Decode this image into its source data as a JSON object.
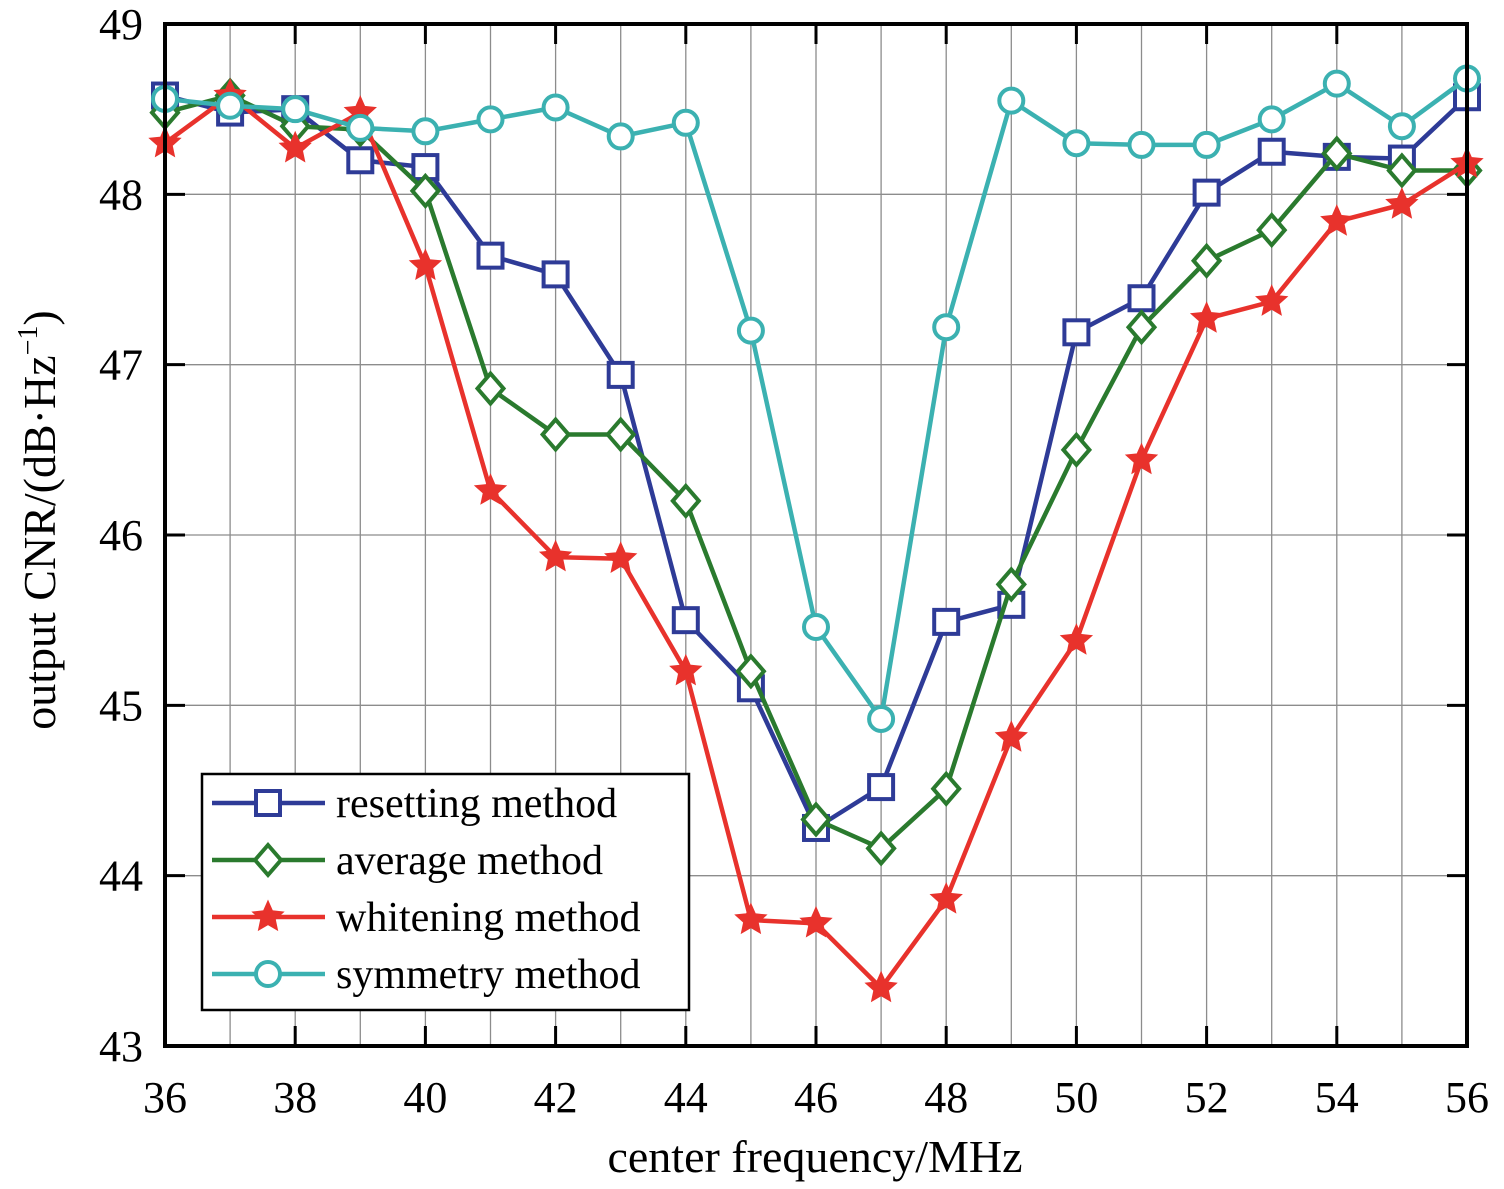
{
  "chart_data": {
    "type": "line",
    "title": "",
    "xlabel": "center frequency/MHz",
    "ylabel": "output CNR/(dB·Hz",
    "ylabel_superscript": "−1",
    "ylabel_close": ")",
    "xlim": [
      36,
      56
    ],
    "ylim": [
      43,
      49
    ],
    "xticks": [
      36,
      38,
      40,
      42,
      44,
      46,
      48,
      50,
      52,
      54,
      56
    ],
    "yticks": [
      43,
      44,
      45,
      46,
      47,
      48,
      49
    ],
    "grid": true,
    "legend_position": "bottom-left",
    "x": [
      36,
      37,
      38,
      39,
      40,
      41,
      42,
      43,
      44,
      45,
      46,
      47,
      48,
      49,
      50,
      51,
      52,
      53,
      54,
      55,
      56
    ],
    "series": [
      {
        "name": "resetting method",
        "color": "#2e3b97",
        "marker": "square",
        "values": [
          48.58,
          48.48,
          48.5,
          48.2,
          48.16,
          47.64,
          47.53,
          46.94,
          45.5,
          45.1,
          44.28,
          44.52,
          45.49,
          45.59,
          47.19,
          47.39,
          48.01,
          48.25,
          48.22,
          48.21,
          48.57
        ]
      },
      {
        "name": "average method",
        "color": "#2a7a2e",
        "marker": "diamond",
        "values": [
          48.48,
          48.58,
          48.4,
          48.38,
          48.02,
          46.86,
          46.59,
          46.59,
          46.2,
          45.2,
          44.33,
          44.16,
          44.51,
          45.71,
          46.5,
          47.22,
          47.61,
          47.79,
          48.24,
          48.14,
          48.14
        ]
      },
      {
        "name": "whitening method",
        "color": "#e8322c",
        "marker": "star",
        "values": [
          48.3,
          48.58,
          48.27,
          48.48,
          47.58,
          46.26,
          45.87,
          45.86,
          45.2,
          43.74,
          43.72,
          43.34,
          43.86,
          44.81,
          45.38,
          46.44,
          47.27,
          47.37,
          47.84,
          47.94,
          48.18
        ]
      },
      {
        "name": "symmetry method",
        "color": "#3bb1b1",
        "marker": "circle",
        "values": [
          48.56,
          48.52,
          48.5,
          48.39,
          48.37,
          48.44,
          48.51,
          48.34,
          48.42,
          47.2,
          45.46,
          44.92,
          47.22,
          48.55,
          48.3,
          48.29,
          48.29,
          48.44,
          48.65,
          48.4,
          48.68
        ]
      }
    ]
  }
}
